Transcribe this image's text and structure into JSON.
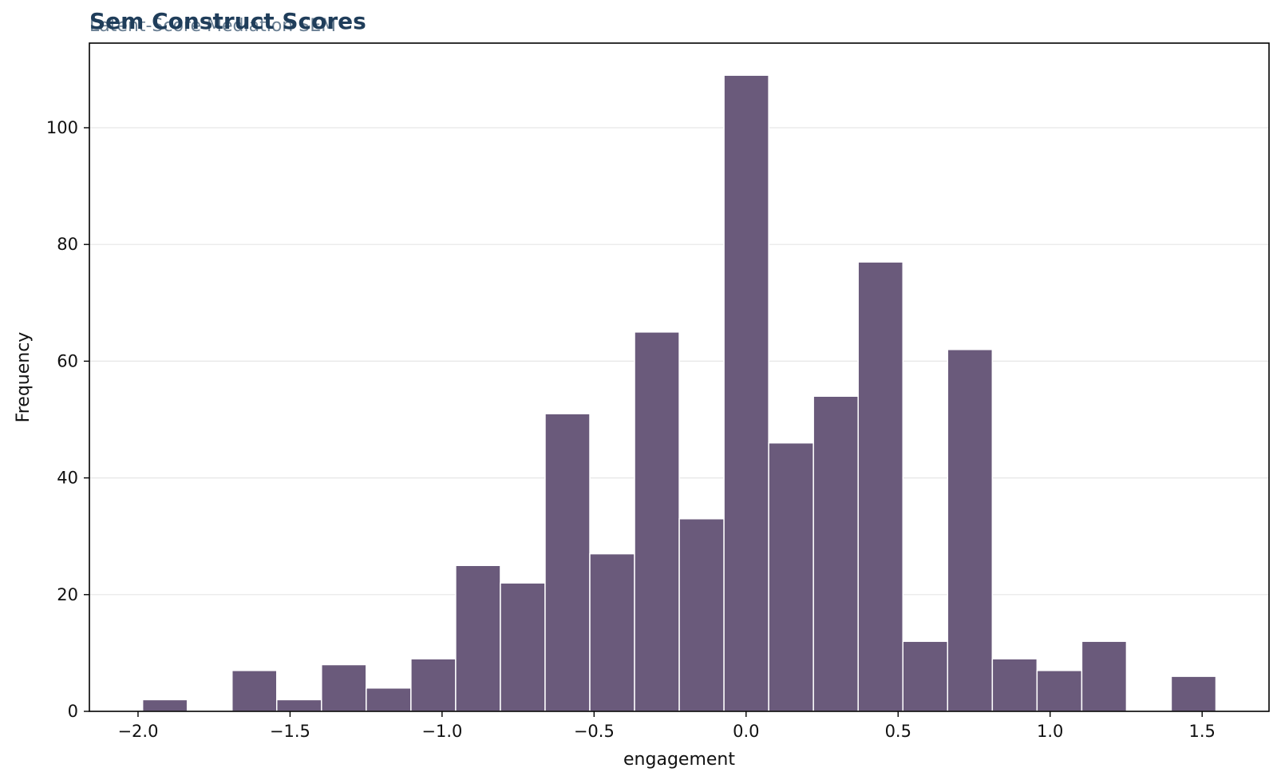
{
  "chart_data": {
    "type": "bar",
    "title": "Sem Construct Scores",
    "subtitle": "Latent-Score Mediation SEM",
    "xlabel": "engagement",
    "ylabel": "Frequency",
    "xlim": [
      -2.16,
      1.72
    ],
    "ylim": [
      0,
      114.5
    ],
    "xticks": [
      -2.0,
      -1.5,
      -1.0,
      -0.5,
      0.0,
      0.5,
      1.0,
      1.5
    ],
    "xtick_labels": [
      "−2.0",
      "−1.5",
      "−1.0",
      "−0.5",
      "0.0",
      "0.5",
      "1.0",
      "1.5"
    ],
    "yticks": [
      0,
      20,
      40,
      60,
      80,
      100
    ],
    "ytick_labels": [
      "0",
      "20",
      "40",
      "60",
      "80",
      "100"
    ],
    "grid": "y",
    "legend": "none",
    "bar_color": "#6a5a7b",
    "bin_start": -1.985,
    "bin_width": 0.1471,
    "values": [
      2,
      0,
      7,
      2,
      8,
      4,
      9,
      25,
      22,
      51,
      27,
      65,
      33,
      109,
      46,
      54,
      77,
      12,
      62,
      9,
      7,
      12,
      0,
      6
    ]
  }
}
